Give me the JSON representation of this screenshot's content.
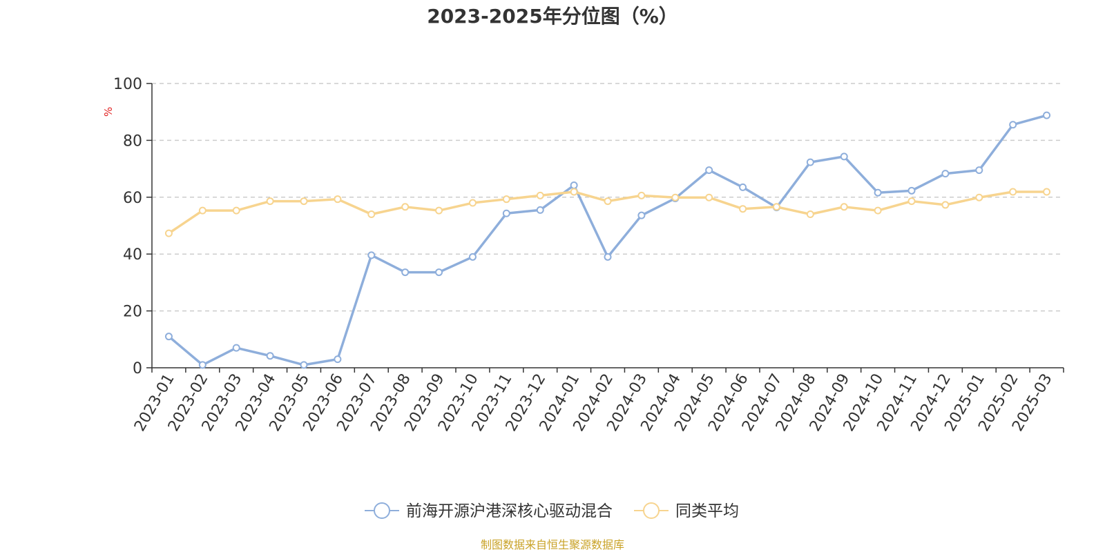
{
  "title": "2023-2025年分位图（%）",
  "source_note": "制图数据来自恒生聚源数据库",
  "chart_data": {
    "type": "line",
    "title": "2023-2025年分位图（%）",
    "xlabel": "",
    "ylabel": "%",
    "ylim": [
      0,
      100
    ],
    "yticks": [
      0,
      20,
      40,
      60,
      80,
      100
    ],
    "grid": true,
    "legend_position": "bottom-center",
    "categories": [
      "2023-01",
      "2023-02",
      "2023-03",
      "2023-04",
      "2023-05",
      "2023-06",
      "2023-07",
      "2023-08",
      "2023-09",
      "2023-10",
      "2023-11",
      "2023-12",
      "2024-01",
      "2024-02",
      "2024-03",
      "2024-04",
      "2024-05",
      "2024-06",
      "2024-07",
      "2024-08",
      "2024-09",
      "2024-10",
      "2024-11",
      "2024-12",
      "2025-01",
      "2025-02",
      "2025-03"
    ],
    "series": [
      {
        "name": "前海开源沪港深核心驱动混合",
        "color": "#8eaedb",
        "values": [
          11,
          1,
          7,
          4.2,
          1,
          3,
          39.6,
          33.6,
          33.6,
          39,
          54.3,
          55.5,
          64.2,
          39,
          53.6,
          59.6,
          69.5,
          63.5,
          56.4,
          72.3,
          74.3,
          61.6,
          62.3,
          68.3,
          69.5,
          85.5,
          88.8
        ]
      },
      {
        "name": "同类平均",
        "color": "#f7d48f",
        "values": [
          47.3,
          55.3,
          55.3,
          58.6,
          58.6,
          59.3,
          54,
          56.6,
          55.3,
          58,
          59.3,
          60.6,
          61.9,
          58.6,
          60.6,
          59.9,
          59.9,
          55.9,
          56.6,
          54,
          56.6,
          55.3,
          58.6,
          57.3,
          59.9,
          61.9,
          61.9
        ]
      }
    ]
  }
}
